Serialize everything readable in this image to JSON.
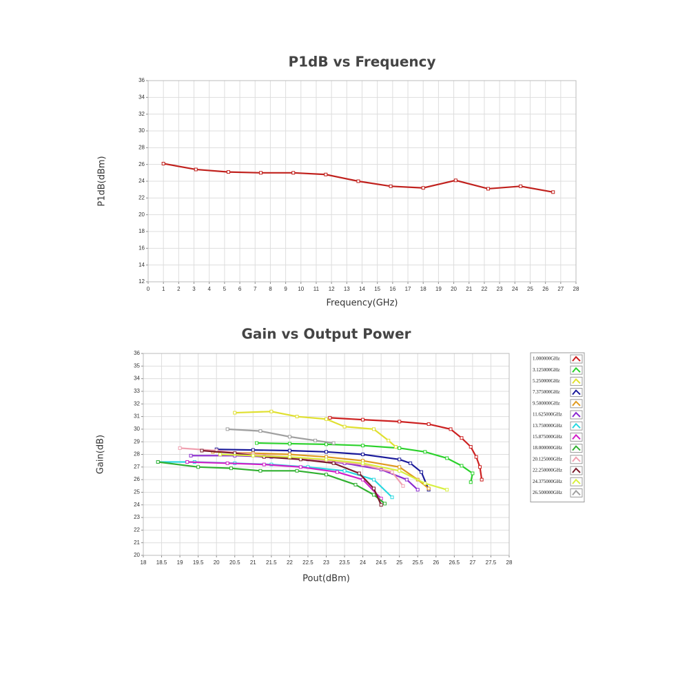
{
  "chart_data": [
    {
      "type": "line",
      "title": "P1dB vs Frequency",
      "x_label": "Frequency(GHz)",
      "y_label": "P1dB(dBm)",
      "x": [
        1,
        3.125,
        5.25,
        7.375,
        9.5,
        11.625,
        13.75,
        15.875,
        18,
        20.125,
        22.25,
        24.375,
        26.5
      ],
      "values": [
        26.1,
        25.4,
        25.1,
        25.0,
        25.0,
        24.8,
        24.0,
        23.4,
        23.2,
        24.1,
        23.1,
        23.4,
        22.7
      ],
      "color": "#c0201c",
      "xlim": [
        0,
        28
      ],
      "xticks": [
        0,
        1,
        2,
        3,
        4,
        5,
        6,
        7,
        8,
        9,
        10,
        11,
        12,
        13,
        14,
        15,
        16,
        17,
        18,
        19,
        20,
        21,
        22,
        23,
        24,
        25,
        26,
        27,
        28
      ],
      "ylim": [
        12,
        36
      ],
      "yticks": [
        12,
        14,
        16,
        18,
        20,
        22,
        24,
        26,
        28,
        30,
        32,
        34,
        36
      ],
      "grid": true
    },
    {
      "type": "line",
      "title": "Gain vs Output Power",
      "x_label": "Pout(dBm)",
      "y_label": "Gain(dB)",
      "xlim": [
        18,
        28
      ],
      "xticks": [
        18,
        18.5,
        19,
        19.5,
        20,
        20.5,
        21,
        21.5,
        22,
        22.5,
        23,
        23.5,
        24,
        24.5,
        25,
        25.5,
        26,
        26.5,
        27,
        27.5,
        28
      ],
      "ylim": [
        20,
        36
      ],
      "yticks": [
        20,
        21,
        22,
        23,
        24,
        25,
        26,
        27,
        28,
        29,
        30,
        31,
        32,
        33,
        34,
        35,
        36
      ],
      "grid": true,
      "legend": "right",
      "series": [
        {
          "name": "1.000000GHz",
          "color": "#cc1f1f",
          "x": [
            23.1,
            24,
            25,
            25.8,
            26.4,
            26.7,
            26.95,
            27.1,
            27.2,
            27.25
          ],
          "values": [
            30.9,
            30.75,
            30.6,
            30.4,
            30.0,
            29.3,
            28.6,
            27.8,
            27.0,
            26.0
          ]
        },
        {
          "name": "3.125000GHz",
          "color": "#2ad12a",
          "x": [
            21.1,
            22,
            23,
            24,
            25,
            25.7,
            26.3,
            26.7,
            27,
            26.95
          ],
          "values": [
            28.9,
            28.85,
            28.8,
            28.7,
            28.5,
            28.2,
            27.7,
            27.1,
            26.5,
            25.8
          ]
        },
        {
          "name": "5.250000GHz",
          "color": "#e0e030",
          "x": [
            20.5,
            21.5,
            22.2,
            23,
            23.5,
            24.3,
            24.7,
            24.9
          ],
          "values": [
            31.3,
            31.4,
            31.0,
            30.8,
            30.2,
            30.0,
            29.1,
            28.6
          ]
        },
        {
          "name": "7.375000GHz",
          "color": "#1a1a9a",
          "x": [
            20,
            21,
            22,
            23,
            24,
            25,
            25.3,
            25.6,
            25.8
          ],
          "values": [
            28.4,
            28.35,
            28.3,
            28.2,
            28.0,
            27.6,
            27.3,
            26.6,
            25.2
          ]
        },
        {
          "name": "9.500000GHz",
          "color": "#e09a20",
          "x": [
            19.9,
            21,
            22,
            23,
            24,
            25,
            25.5,
            25.8
          ],
          "values": [
            28.2,
            28.1,
            28.0,
            27.8,
            27.5,
            27.0,
            26.0,
            25.3
          ]
        },
        {
          "name": "11.625000GHz",
          "color": "#8a2ad0",
          "x": [
            19.3,
            20.5,
            21.5,
            22.5,
            23.5,
            24.5,
            25.2,
            25.5
          ],
          "values": [
            27.9,
            27.9,
            27.8,
            27.6,
            27.3,
            26.8,
            26.0,
            25.2
          ]
        },
        {
          "name": "13.750000GHz",
          "color": "#28d8e0",
          "x": [
            18.4,
            19.4,
            20.5,
            21.5,
            22.5,
            23.5,
            24.3,
            24.8
          ],
          "values": [
            27.4,
            27.4,
            27.3,
            27.2,
            27.0,
            26.7,
            26.0,
            24.6
          ]
        },
        {
          "name": "15.875000GHz",
          "color": "#d020c8",
          "x": [
            19.2,
            20.3,
            21.3,
            22.3,
            23.3,
            24,
            24.5
          ],
          "values": [
            27.4,
            27.3,
            27.2,
            27.0,
            26.6,
            26.0,
            24.5
          ]
        },
        {
          "name": "18.000000GHz",
          "color": "#30b030",
          "x": [
            18.4,
            19.5,
            20.4,
            21.2,
            22.2,
            23,
            23.8,
            24.3,
            24.6
          ],
          "values": [
            27.4,
            27.0,
            26.9,
            26.7,
            26.7,
            26.4,
            25.6,
            24.8,
            24.1
          ]
        },
        {
          "name": "20.125000GHz",
          "color": "#f0a0b0",
          "x": [
            19,
            20,
            21,
            22,
            23,
            24,
            24.8,
            25.1
          ],
          "values": [
            28.5,
            28.3,
            28.0,
            27.8,
            27.5,
            27.2,
            26.6,
            25.5
          ]
        },
        {
          "name": "22.250000GHz",
          "color": "#7a1a2a",
          "x": [
            19.6,
            20.5,
            21.3,
            22.3,
            23.2,
            23.9,
            24.3,
            24.5
          ],
          "values": [
            28.3,
            28.1,
            27.8,
            27.6,
            27.3,
            26.5,
            25.3,
            24.0
          ]
        },
        {
          "name": "24.375000GHz",
          "color": "#d8f040",
          "x": [
            20.1,
            21,
            22,
            23,
            24,
            25,
            25.7,
            26.3
          ],
          "values": [
            28.0,
            27.9,
            27.8,
            27.6,
            27.3,
            26.7,
            25.7,
            25.2
          ]
        },
        {
          "name": "26.500000GHz",
          "color": "#a0a0a0",
          "x": [
            20.3,
            21.2,
            22,
            22.7,
            23.2
          ],
          "values": [
            30.0,
            29.85,
            29.4,
            29.1,
            28.9
          ]
        }
      ]
    }
  ]
}
